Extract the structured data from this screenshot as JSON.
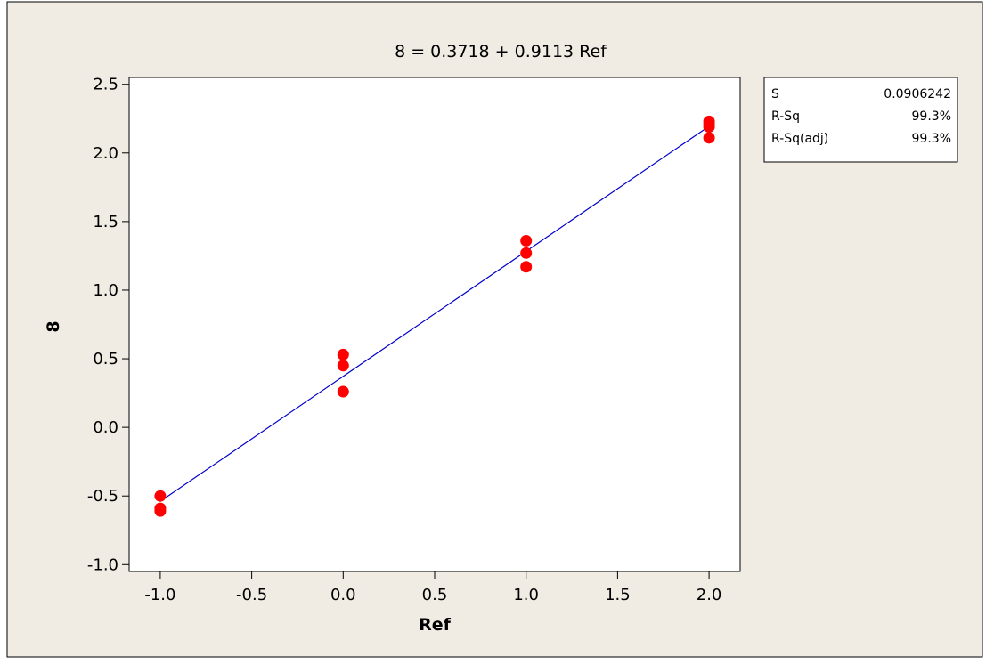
{
  "chart_data": {
    "type": "scatter",
    "title": "8 =  0.3718 + 0.9113 Ref",
    "xlabel": "Ref",
    "ylabel": "8",
    "xlim": [
      -1.17,
      2.17
    ],
    "ylim": [
      -1.05,
      2.55
    ],
    "xticks": [
      -1.0,
      -0.5,
      0.0,
      0.5,
      1.0,
      1.5,
      2.0
    ],
    "xtick_labels": [
      "-1.0",
      "-0.5",
      "0.0",
      "0.5",
      "1.0",
      "1.5",
      "2.0"
    ],
    "yticks": [
      -1.0,
      -0.5,
      0.0,
      0.5,
      1.0,
      1.5,
      2.0,
      2.5
    ],
    "ytick_labels": [
      "-1.0",
      "-0.5",
      "0.0",
      "0.5",
      "1.0",
      "1.5",
      "2.0",
      "2.5"
    ],
    "grid": false,
    "points": {
      "color": "#ff0000",
      "x": [
        -1,
        -1,
        -1,
        0,
        0,
        0,
        1,
        1,
        1,
        2,
        2,
        2,
        2
      ],
      "y": [
        -0.5,
        -0.59,
        -0.61,
        0.53,
        0.45,
        0.26,
        1.36,
        1.27,
        1.17,
        2.23,
        2.19,
        2.11,
        2.21
      ]
    },
    "fit_line": {
      "color": "#0000cc",
      "intercept": 0.3718,
      "slope": 0.9113,
      "x_range": [
        -1,
        2
      ]
    }
  },
  "stats": [
    {
      "label": "S",
      "value": "0.0906242"
    },
    {
      "label": "R-Sq",
      "value": "99.3%"
    },
    {
      "label": "R-Sq(adj)",
      "value": "99.3%"
    }
  ],
  "colors": {
    "background": "#f0ece3",
    "plot_area": "#ffffff",
    "border": "#000000"
  }
}
